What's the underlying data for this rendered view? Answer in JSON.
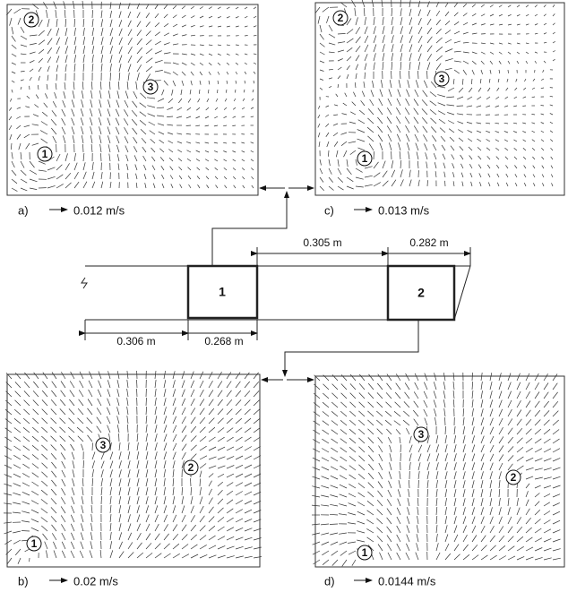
{
  "panels": [
    {
      "label": "a)",
      "scale": "0.012 m/s",
      "markers": [
        "2",
        "3",
        "1"
      ]
    },
    {
      "label": "c)",
      "scale": "0.013 m/s",
      "markers": [
        "2",
        "3",
        "1"
      ]
    },
    {
      "label": "b)",
      "scale": "0.02 m/s",
      "markers": [
        "3",
        "2",
        "1"
      ]
    },
    {
      "label": "d)",
      "scale": "0.0144 m/s",
      "markers": [
        "3",
        "2",
        "1"
      ]
    }
  ],
  "diagram": {
    "boxes": [
      "1",
      "2"
    ],
    "dimensions": [
      "0.305 m",
      "0.282 m",
      "0.306 m",
      "0.268 m"
    ]
  }
}
